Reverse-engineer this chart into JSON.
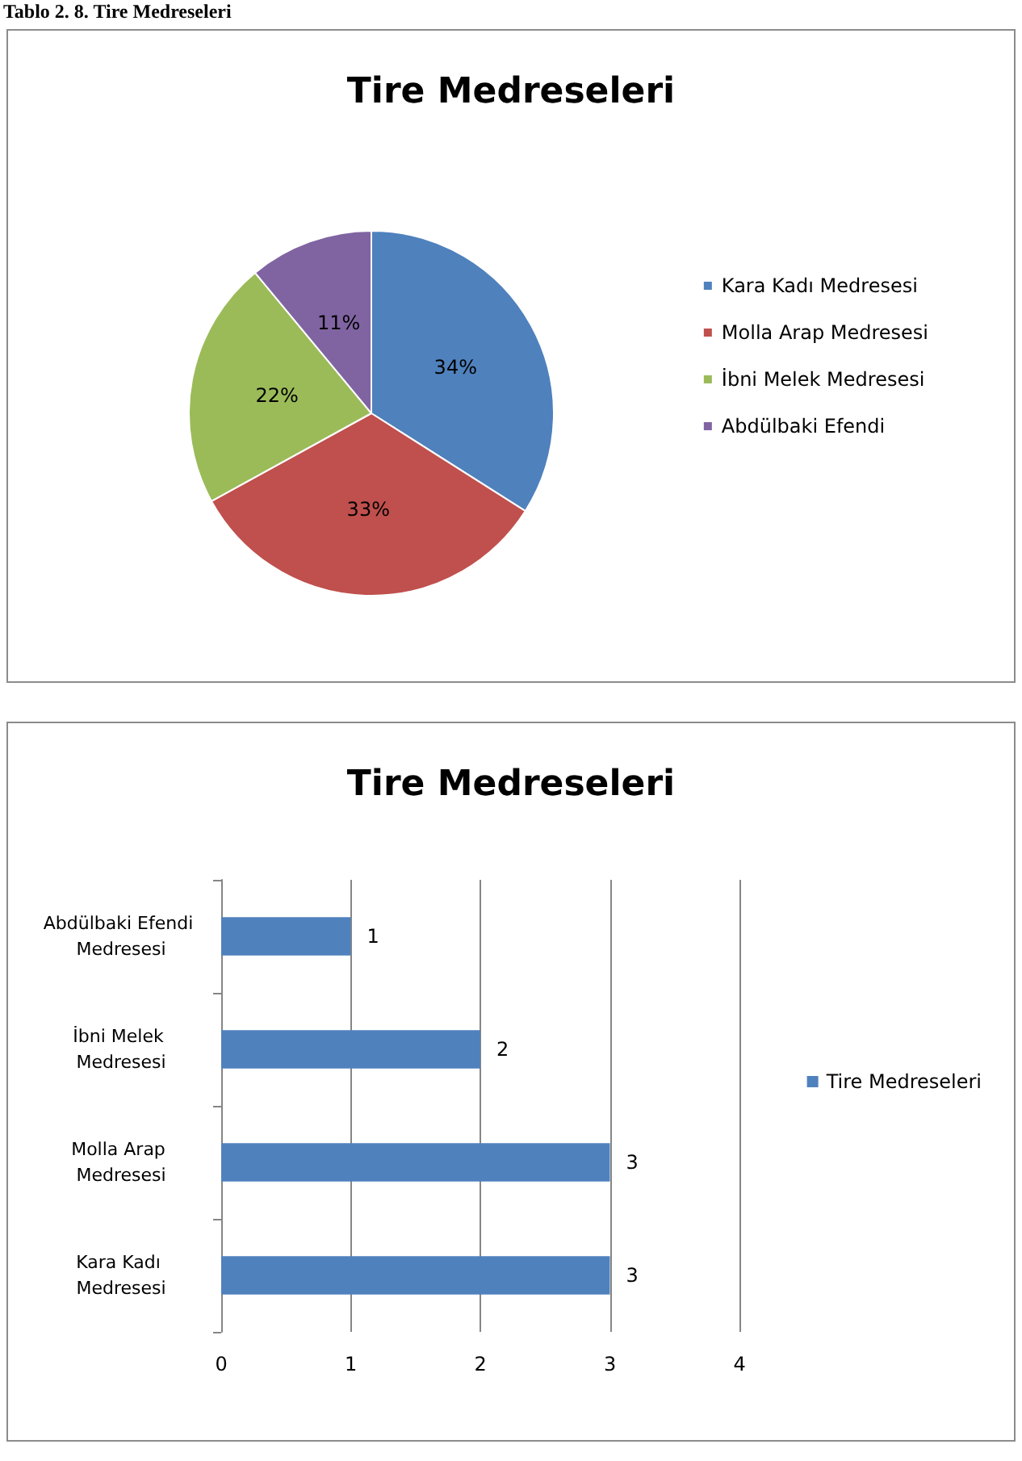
{
  "chart_data": [
    {
      "type": "pie",
      "title": "Tire Medreseleri",
      "annotations": [
        "Tablo 2. 8. Tire Medreseleri"
      ],
      "categories": [
        "Kara Kadı Medresesi",
        "Molla Arap Medresesi",
        "İbni Melek Medresesi",
        "Abdülbaki Efendi"
      ],
      "values": [
        34,
        33,
        22,
        11
      ],
      "colors": [
        "#4f81bd",
        "#c0504d",
        "#9bbb59",
        "#8064a2"
      ],
      "value_labels": [
        "34%",
        "33%",
        "22%",
        "11%"
      ],
      "legend": "right"
    },
    {
      "type": "bar",
      "title": "Tire Medreseleri",
      "orientation": "horizontal",
      "categories": [
        "Abdülbaki Efendi Medresesi",
        "İbni Melek Medresesi",
        "Molla Arap Medresesi",
        "Kara Kadı Medresesi"
      ],
      "series": [
        {
          "name": "Tire Medreseleri",
          "color": "#4f81bd",
          "values": [
            1,
            2,
            3,
            3
          ]
        }
      ],
      "xlim": [
        0,
        4
      ],
      "xticks": [
        0,
        1,
        2,
        3,
        4
      ],
      "grid": "x",
      "data_labels": true,
      "legend": "right"
    }
  ]
}
